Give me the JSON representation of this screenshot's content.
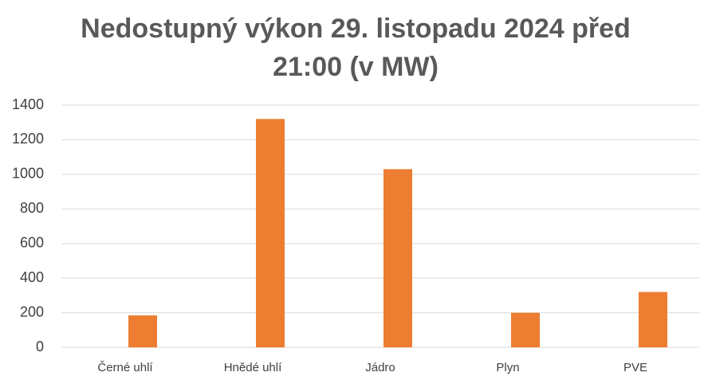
{
  "chart_data": {
    "type": "bar",
    "title": "Nedostupný výkon 29. listopadu 2024 před 21:00 (v MW)",
    "categories": [
      "Černé uhlí",
      "Hnědé uhlí",
      "Jádro",
      "Plyn",
      "PVE"
    ],
    "values": [
      185,
      1320,
      1030,
      200,
      320
    ],
    "color": "#ed7d31",
    "ylim": [
      0,
      1400
    ],
    "yticks": [
      0,
      200,
      400,
      600,
      800,
      1000,
      1200,
      1400
    ],
    "grid": true
  }
}
